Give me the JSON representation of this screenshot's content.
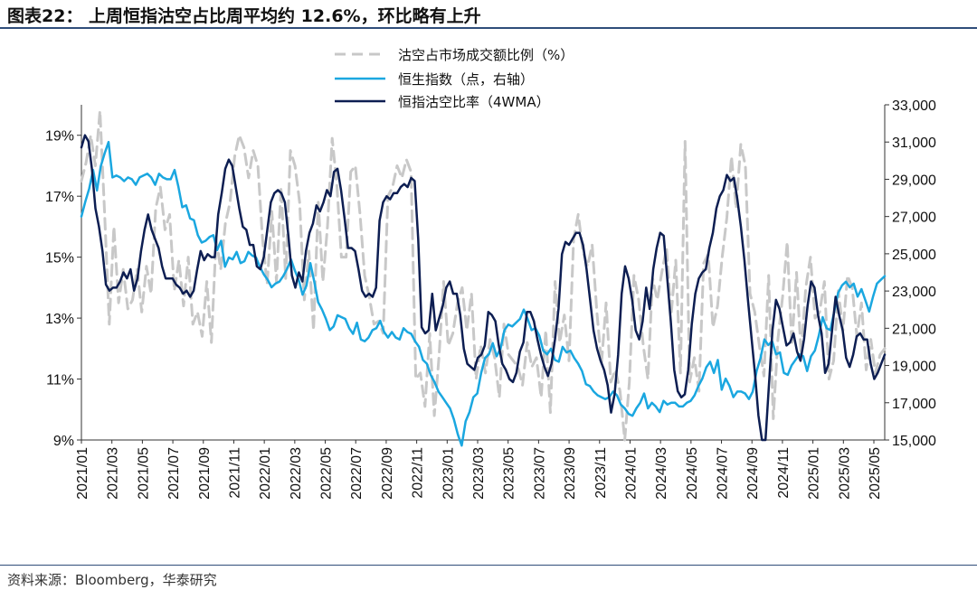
{
  "header": {
    "title": "图表22：  上周恒指沽空占比周平均约 12.6%，环比略有上升"
  },
  "footer": {
    "source": "资料来源：Bloomberg，华泰研究"
  },
  "colors": {
    "short_ratio": "#c8c8c8",
    "hsi": "#1aa7e0",
    "short_ratio_4wma": "#0d1e52",
    "rule": "#2f4d7a"
  },
  "chart_data": {
    "type": "line",
    "x_labels": [
      "2021/01",
      "2021/03",
      "2021/05",
      "2021/07",
      "2021/09",
      "2021/11",
      "2022/01",
      "2022/03",
      "2022/05",
      "2022/07",
      "2022/09",
      "2022/11",
      "2023/01",
      "2023/03",
      "2023/05",
      "2023/07",
      "2023/09",
      "2023/11",
      "2024/01",
      "2024/03",
      "2024/05",
      "2024/07",
      "2024/09",
      "2024/11",
      "2025/01",
      "2025/03",
      "2025/05"
    ],
    "y_left": {
      "min": 9,
      "max": 20,
      "ticks": [
        "9%",
        "11%",
        "13%",
        "15%",
        "17%",
        "19%"
      ],
      "tick_values": [
        9,
        11,
        13,
        15,
        17,
        19
      ]
    },
    "y_right": {
      "min": 15000,
      "max": 33000,
      "ticks": [
        "15,000",
        "17,000",
        "19,000",
        "21,000",
        "23,000",
        "25,000",
        "27,000",
        "29,000",
        "31,000",
        "33,000"
      ],
      "tick_values": [
        15000,
        17000,
        19000,
        21000,
        23000,
        25000,
        27000,
        29000,
        31000,
        33000
      ]
    },
    "legend": [
      "沽空占市场成交额比例（%）",
      "恒生指数（点，右轴）",
      "恒指沽空比率（4WMA）"
    ],
    "series": [
      {
        "name": "沽空占市场成交额比例（%）",
        "axis": "left",
        "style": "dashed",
        "values": [
          17.5,
          18.1,
          19.0,
          18.0,
          19.8,
          16.4,
          12.8,
          16.0,
          13.5,
          14.6,
          13.3,
          13.6,
          14.6,
          13.2,
          14.7,
          13.8,
          16.6,
          17.3,
          15.9,
          16.4,
          13.9,
          14.9,
          13.4,
          15.0,
          12.8,
          13.2,
          12.4,
          14.2,
          12.2,
          15.6,
          14.6,
          16.1,
          16.8,
          18.3,
          19.0,
          18.6,
          17.6,
          18.5,
          18.0,
          15.6,
          14.1,
          16.5,
          14.2,
          17.3,
          14.3,
          18.5,
          18.0,
          16.8,
          13.6,
          15.2,
          12.6,
          16.8,
          14.2,
          16.0,
          18.9,
          17.4,
          15.0,
          15.0,
          17.8,
          18.0,
          16.4,
          14.4,
          13.7,
          12.8,
          12.9,
          12.5,
          17.0,
          17.3,
          18.0,
          17.6,
          18.2,
          17.8,
          11.0,
          11.2,
          10.1,
          12.5,
          9.8,
          11.7,
          14.2,
          12.1,
          12.5,
          13.5,
          14.0,
          12.6,
          13.8,
          11.0,
          12.1,
          11.2,
          12.3,
          11.7,
          10.4,
          12.8,
          11.8,
          11.6,
          11.4,
          10.8,
          12.2,
          11.4,
          11.7,
          10.4,
          12.6,
          9.9,
          14.2,
          12.2,
          13.1,
          11.6,
          15.6,
          16.4,
          15.2,
          14.7,
          15.4,
          13.2,
          11.5,
          13.5,
          10.9,
          11.3,
          10.6,
          9.0,
          10.9,
          14.4,
          13.6,
          12.1,
          11.0,
          14.3,
          13.6,
          14.5,
          15.3,
          13.1,
          14.9,
          11.2,
          18.8,
          10.9,
          11.7,
          10.6,
          14.8,
          15.1,
          12.7,
          13.4,
          15.0,
          16.3,
          18.3,
          16.6,
          18.7,
          18.0,
          13.8,
          13.2,
          12.1,
          11.1,
          14.4,
          9.7,
          12.3,
          13.7,
          15.5,
          12.1,
          14.5,
          11.8,
          14.0,
          15.0,
          13.0,
          13.2,
          14.2,
          11.0,
          11.6,
          13.9,
          12.6,
          14.4,
          14.0,
          12.4,
          13.5,
          11.3,
          12.3,
          11.2,
          11.8,
          12.0
        ]
      },
      {
        "name": "恒生指数（点，右轴）",
        "axis": "right",
        "values": [
          27000,
          27800,
          28500,
          29500,
          28400,
          29700,
          30400,
          31000,
          29100,
          29200,
          29100,
          28900,
          29100,
          29000,
          28700,
          29100,
          29200,
          29300,
          29100,
          28700,
          29300,
          29100,
          29000,
          29000,
          29500,
          28600,
          27500,
          27600,
          26900,
          26800,
          26000,
          25600,
          25700,
          25900,
          26000,
          25200,
          25700,
          24300,
          24800,
          24700,
          25100,
          24500,
          24600,
          25100,
          24900,
          24800,
          24300,
          23900,
          23600,
          23200,
          23400,
          23500,
          23800,
          24200,
          24700,
          24100,
          23600,
          22800,
          23300,
          24500,
          23500,
          22400,
          22000,
          21500,
          20900,
          21100,
          21700,
          21600,
          21500,
          21000,
          20700,
          21300,
          20400,
          20300,
          20500,
          20900,
          21000,
          21400,
          20800,
          20500,
          20800,
          20500,
          20400,
          21000,
          20800,
          20700,
          20300,
          20000,
          19300,
          19100,
          18500,
          18100,
          17600,
          17300,
          17000,
          16700,
          16100,
          15300,
          14700,
          16000,
          16500,
          17300,
          17500,
          18600,
          19400,
          19600,
          20200,
          19500,
          19900,
          20900,
          21200,
          21100,
          21300,
          21500,
          22000,
          21500,
          20900,
          21000,
          20600,
          19800,
          19600,
          19900,
          19300,
          19200,
          20000,
          19700,
          19800,
          19400,
          19100,
          18700,
          18000,
          17900,
          17600,
          17400,
          17300,
          17200,
          17300,
          17600,
          17400,
          16900,
          16700,
          16400,
          16300,
          16700,
          17000,
          17500,
          16700,
          17000,
          16800,
          16500,
          17100,
          16900,
          17000,
          17000,
          16800,
          16800,
          17000,
          17100,
          17400,
          17900,
          18300,
          18900,
          19200,
          18600,
          19300,
          17700,
          18300,
          17900,
          17300,
          17600,
          17600,
          17500,
          17200,
          17600,
          18700,
          19400,
          20400,
          20100,
          20300,
          19600,
          19700,
          18600,
          18500,
          19000,
          19300,
          19600,
          19500,
          18700,
          19500,
          19800,
          20600,
          21600,
          21000,
          20900,
          21900,
          22900,
          23300,
          23500,
          23200,
          23400,
          22700,
          23100,
          22500,
          21900,
          22700,
          23400,
          23600,
          23800
        ]
      },
      {
        "name": "恒指沽空比率（4WMA）",
        "axis": "left",
        "values": [
          18.6,
          19.0,
          18.8,
          17.9,
          16.6,
          16.0,
          15.2,
          14.1,
          13.9,
          14.0,
          14.0,
          14.2,
          14.5,
          14.3,
          14.6,
          13.9,
          14.3,
          15.2,
          15.9,
          16.4,
          15.9,
          15.6,
          15.3,
          14.7,
          14.3,
          14.3,
          14.3,
          14.1,
          14.0,
          13.8,
          13.9,
          13.7,
          13.9,
          14.6,
          15.2,
          14.9,
          15.1,
          15.0,
          15.0,
          16.4,
          17.1,
          17.9,
          18.2,
          18.0,
          17.3,
          16.6,
          16.0,
          15.9,
          15.4,
          15.4,
          14.7,
          14.6,
          15.0,
          15.9,
          16.8,
          17.1,
          17.2,
          17.1,
          16.8,
          15.7,
          14.4,
          14.0,
          14.5,
          14.2,
          15.2,
          15.8,
          16.1,
          16.7,
          16.5,
          16.8,
          17.2,
          17.0,
          17.8,
          17.9,
          17.2,
          16.3,
          15.3,
          15.3,
          15.2,
          14.6,
          13.9,
          13.7,
          13.8,
          13.7,
          14.0,
          16.2,
          16.8,
          17.0,
          16.9,
          17.1,
          17.1,
          17.3,
          17.4,
          17.3,
          17.6,
          17.5,
          15.6,
          12.7,
          12.5,
          12.6,
          13.8,
          12.6,
          13.0,
          13.4,
          14.0,
          14.2,
          13.8,
          13.8,
          13.1,
          12.0,
          11.5,
          11.4,
          11.3,
          11.7,
          11.8,
          12.1,
          13.2,
          13.1,
          12.9,
          12.1,
          11.5,
          11.3,
          11.0,
          10.9,
          11.2,
          11.9,
          12.2,
          13.2,
          13.2,
          12.9,
          12.3,
          11.8,
          11.4,
          11.1,
          11.5,
          12.3,
          13.3,
          15.1,
          15.5,
          15.4,
          15.6,
          15.8,
          15.8,
          15.4,
          14.6,
          13.6,
          12.6,
          12.0,
          11.6,
          11.3,
          10.8,
          9.9,
          10.5,
          11.8,
          13.8,
          14.7,
          14.3,
          13.6,
          12.6,
          12.3,
          12.9,
          14.0,
          13.3,
          14.6,
          15.3,
          15.8,
          15.7,
          14.3,
          12.9,
          11.3,
          10.6,
          10.4,
          10.5,
          11.3,
          12.8,
          13.8,
          14.3,
          14.5,
          14.6,
          15.3,
          15.8,
          16.6,
          17.0,
          17.2,
          17.7,
          17.5,
          17.6,
          16.9,
          16.0,
          14.9,
          13.6,
          12.4,
          11.2,
          9.8,
          9.0,
          9.0,
          10.8,
          12.6,
          13.6,
          13.3,
          12.7,
          12.1,
          12.2,
          12.5,
          11.9,
          11.6,
          12.3,
          13.4,
          14.2,
          14.0,
          13.1,
          12.5,
          11.2,
          11.5,
          12.6,
          13.7,
          13.1,
          12.6,
          11.7,
          11.4,
          11.8,
          12.4,
          12.5,
          12.3,
          12.3,
          11.5,
          11.0,
          11.2,
          11.5,
          11.8
        ]
      }
    ]
  }
}
